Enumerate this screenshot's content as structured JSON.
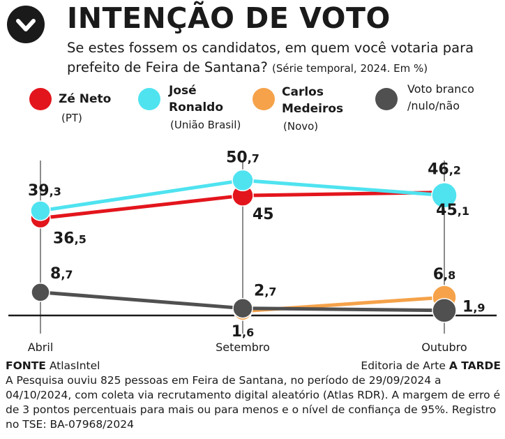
{
  "header": {
    "title": "INTENÇÃO DE VOTO",
    "subtitle": "Se estes fossem os candidatos, em quem você votaria para prefeito de Feira de Santana?",
    "subtitle_note": "(Série temporal, 2024. Em %)"
  },
  "legend": [
    {
      "name_line1": "Zé Neto",
      "name_line2": "",
      "party": "(PT)",
      "color": "#e3151c"
    },
    {
      "name_line1": "José",
      "name_line2": "Ronaldo",
      "party": "(União Brasil)",
      "color": "#4fe3f0"
    },
    {
      "name_line1": "Carlos",
      "name_line2": "Medeiros",
      "party": "(Novo)",
      "color": "#f5a24a"
    },
    {
      "name_line1": "Voto branco",
      "name_line2": "/nulo/não",
      "party": "",
      "color": "#505050"
    }
  ],
  "chart_data": {
    "type": "line",
    "categories": [
      "Abril",
      "Setembro",
      "Outubro"
    ],
    "series": [
      {
        "name": "José Ronaldo",
        "values": [
          39.3,
          50.7,
          45.1
        ],
        "labels": [
          "39,3",
          "50,7",
          "45,1"
        ],
        "color": "#4fe3f0"
      },
      {
        "name": "Zé Neto",
        "values": [
          36.5,
          45,
          46.2
        ],
        "labels": [
          "36,5",
          "45",
          "46,2"
        ],
        "color": "#e3151c"
      },
      {
        "name": "Carlos Medeiros",
        "values": [
          null,
          1.6,
          6.8
        ],
        "labels": [
          "",
          "1,6",
          "6,8"
        ],
        "color": "#f5a24a"
      },
      {
        "name": "Voto branco/nulo/não",
        "values": [
          8.7,
          2.7,
          1.9
        ],
        "labels": [
          "8,7",
          "2,7",
          "1,9"
        ],
        "color": "#505050"
      }
    ],
    "ylim": [
      0,
      55
    ],
    "xlabel": "",
    "ylabel": "",
    "grid": false
  },
  "footer": {
    "source_label": "FONTE",
    "source": "AtlasIntel",
    "credit_prefix": "Editoria de Arte",
    "credit_brand": "A TARDE",
    "methodology": "A Pesquisa ouviu 825 pessoas em Feira de Santana, no período de 29/09/2024 a 04/10/2024, com coleta via recrutamento digital aleatório (Atlas RDR). A margem de erro é de 3 pontos percentuais para mais ou para menos e o nível de confiança de 95%. Registro no TSE: BA-07968/2024"
  }
}
